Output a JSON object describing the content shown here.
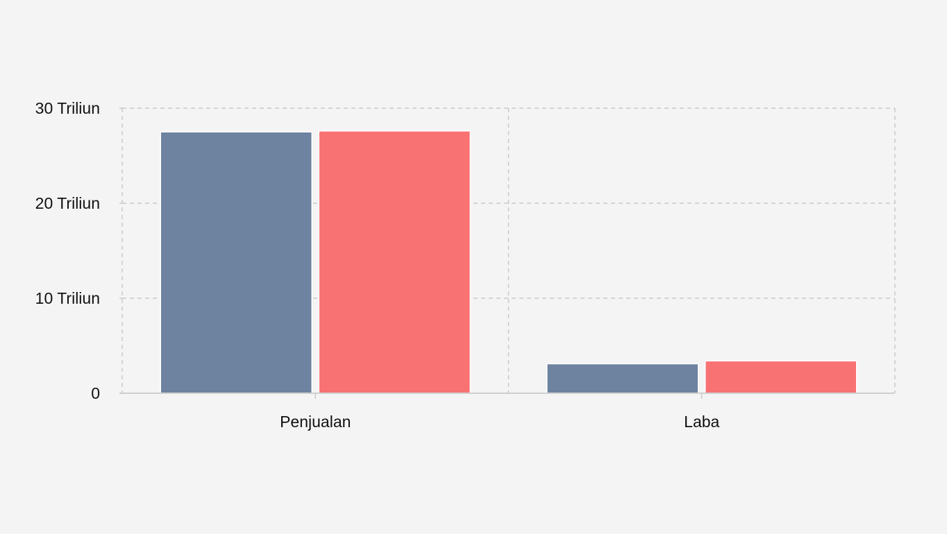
{
  "chart_data": {
    "type": "bar",
    "categories": [
      "Penjualan",
      "Laba"
    ],
    "series": [
      {
        "values": [
          27.5,
          3.1
        ],
        "color": "#6d83a0"
      },
      {
        "values": [
          27.6,
          3.4
        ],
        "color": "#f87274"
      }
    ],
    "unit": 1000000000000,
    "ylim": [
      0,
      30
    ],
    "yticks": [
      {
        "value": 0,
        "label": "0"
      },
      {
        "value": 10,
        "label": "10 Triliun"
      },
      {
        "value": 20,
        "label": "20 Triliun"
      },
      {
        "value": 30,
        "label": "30 Triliun"
      }
    ],
    "grid": true,
    "legend": "none",
    "background": "#f4f4f4"
  }
}
